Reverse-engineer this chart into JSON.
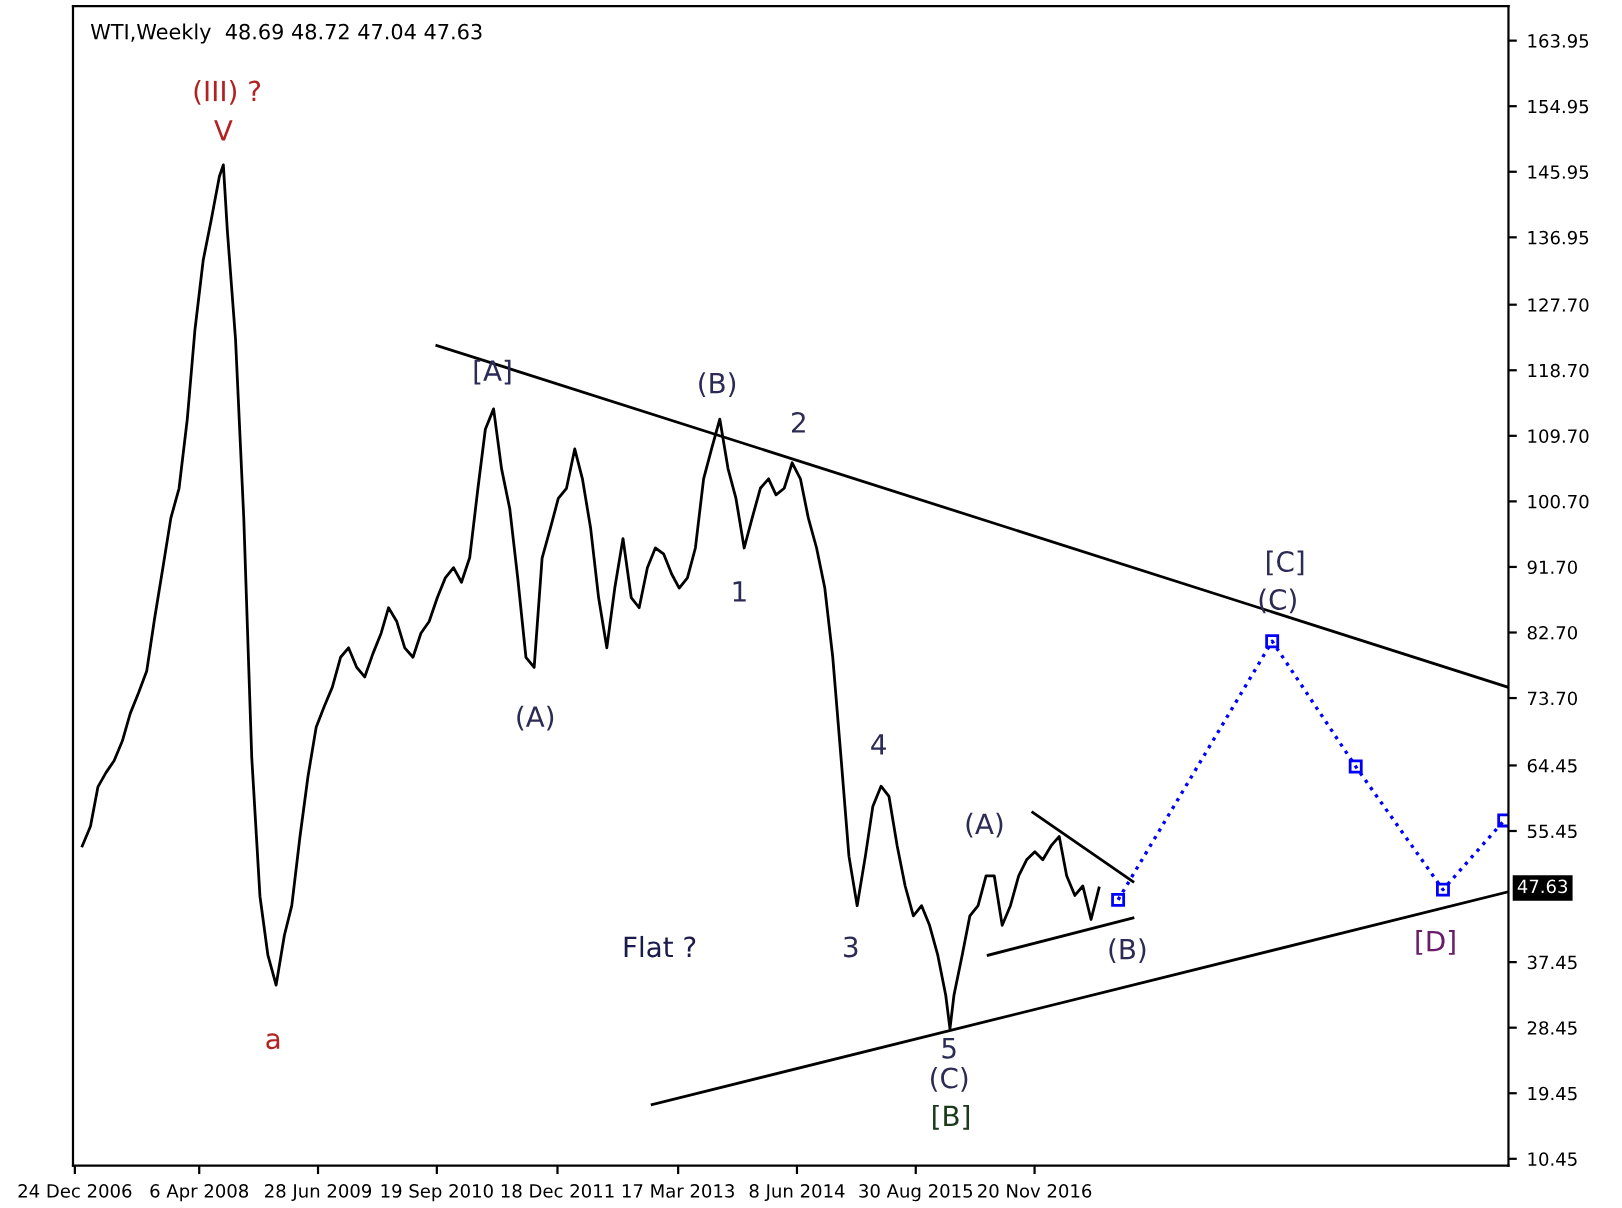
{
  "chart_data": {
    "type": "line",
    "title": "WTI,Weekly  48.69 48.72 47.04 47.63",
    "xlim": [
      "2006-12-17",
      "2021-10-12"
    ],
    "ylim": [
      9.5,
      168.7
    ],
    "xticks": [
      {
        "value": "2006-12-24",
        "label": "24 Dec 2006"
      },
      {
        "value": "2008-04-06",
        "label": "6 Apr 2008"
      },
      {
        "value": "2009-06-28",
        "label": "28 Jun 2009"
      },
      {
        "value": "2010-09-19",
        "label": "19 Sep 2010"
      },
      {
        "value": "2011-12-18",
        "label": "18 Dec 2011"
      },
      {
        "value": "2013-03-17",
        "label": "17 Mar 2013"
      },
      {
        "value": "2014-06-08",
        "label": "8 Jun 2014"
      },
      {
        "value": "2015-08-30",
        "label": "30 Aug 2015"
      },
      {
        "value": "2016-11-20",
        "label": "20 Nov 2016"
      }
    ],
    "yticks": [
      {
        "value": 10.45,
        "label": "10.45"
      },
      {
        "value": 19.45,
        "label": "19.45"
      },
      {
        "value": 28.45,
        "label": "28.45"
      },
      {
        "value": 37.45,
        "label": "37.45"
      },
      {
        "value": 55.45,
        "label": "55.45"
      },
      {
        "value": 64.45,
        "label": "64.45"
      },
      {
        "value": 73.7,
        "label": "73.70"
      },
      {
        "value": 82.7,
        "label": "82.70"
      },
      {
        "value": 91.7,
        "label": "91.70"
      },
      {
        "value": 100.7,
        "label": "100.70"
      },
      {
        "value": 109.7,
        "label": "109.70"
      },
      {
        "value": 118.7,
        "label": "118.70"
      },
      {
        "value": 127.7,
        "label": "127.70"
      },
      {
        "value": 136.95,
        "label": "136.95"
      },
      {
        "value": 145.95,
        "label": "145.95"
      },
      {
        "value": 154.95,
        "label": "154.95"
      },
      {
        "value": 163.95,
        "label": "163.95"
      }
    ],
    "grid": false,
    "legend": false,
    "series": [
      {
        "color": "#000000",
        "x": [
          "2007-01-21",
          "2007-02-21",
          "2007-03-21",
          "2007-04-21",
          "2007-05-21",
          "2007-06-21",
          "2007-07-21",
          "2007-08-21",
          "2007-09-21",
          "2007-10-21",
          "2007-11-21",
          "2007-12-21",
          "2008-01-21",
          "2008-02-21",
          "2008-03-21",
          "2008-04-21",
          "2008-05-21",
          "2008-06-21",
          "2008-07-06",
          "2008-07-21",
          "2008-08-21",
          "2008-09-21",
          "2008-10-21",
          "2008-11-21",
          "2008-12-21",
          "2009-01-21",
          "2009-02-21",
          "2009-03-21",
          "2009-04-21",
          "2009-05-21",
          "2009-06-21",
          "2009-07-21",
          "2009-08-21",
          "2009-09-21",
          "2009-10-21",
          "2009-11-21",
          "2009-12-21",
          "2010-01-21",
          "2010-02-21",
          "2010-03-21",
          "2010-04-21",
          "2010-05-21",
          "2010-06-21",
          "2010-07-21",
          "2010-08-21",
          "2010-09-21",
          "2010-10-21",
          "2010-11-21",
          "2010-12-21",
          "2011-01-21",
          "2011-02-21",
          "2011-03-21",
          "2011-04-21",
          "2011-05-21",
          "2011-06-21",
          "2011-07-21",
          "2011-08-21",
          "2011-09-21",
          "2011-10-21",
          "2011-11-21",
          "2011-12-21",
          "2012-01-21",
          "2012-02-21",
          "2012-03-21",
          "2012-04-21",
          "2012-05-21",
          "2012-06-21",
          "2012-07-21",
          "2012-08-21",
          "2012-09-21",
          "2012-10-21",
          "2012-11-21",
          "2012-12-21",
          "2013-01-21",
          "2013-02-21",
          "2013-03-21",
          "2013-04-21",
          "2013-05-21",
          "2013-06-21",
          "2013-07-21",
          "2013-08-21",
          "2013-09-21",
          "2013-10-21",
          "2013-11-21",
          "2013-12-21",
          "2014-01-21",
          "2014-02-21",
          "2014-03-21",
          "2014-04-21",
          "2014-05-21",
          "2014-06-21",
          "2014-07-21",
          "2014-08-21",
          "2014-09-21",
          "2014-10-21",
          "2014-11-21",
          "2014-12-21",
          "2015-01-21",
          "2015-02-21",
          "2015-03-21",
          "2015-04-21",
          "2015-05-21",
          "2015-06-21",
          "2015-07-21",
          "2015-08-21",
          "2015-09-21",
          "2015-10-21",
          "2015-11-21",
          "2015-12-21",
          "2016-01-06",
          "2016-01-21",
          "2016-02-21",
          "2016-03-21",
          "2016-04-21",
          "2016-05-21",
          "2016-06-21",
          "2016-07-21",
          "2016-08-21",
          "2016-09-21",
          "2016-10-21",
          "2016-11-21",
          "2016-12-21",
          "2017-01-21",
          "2017-02-21",
          "2017-03-21",
          "2017-04-21",
          "2017-05-21",
          "2017-06-21",
          "2017-07-21"
        ],
        "values": [
          53.4,
          56.1,
          61.5,
          63.5,
          65.1,
          67.8,
          71.6,
          74.4,
          77.4,
          84.7,
          91.6,
          98.4,
          102.5,
          112.0,
          124.3,
          133.8,
          139.3,
          145.3,
          146.9,
          137.9,
          122.9,
          98.4,
          65.6,
          46.5,
          38.4,
          34.3,
          41.1,
          45.2,
          54.7,
          62.9,
          69.7,
          72.5,
          75.2,
          79.3,
          80.6,
          77.9,
          76.6,
          79.8,
          82.6,
          86.1,
          84.2,
          80.6,
          79.3,
          82.6,
          84.2,
          87.5,
          90.2,
          91.6,
          89.6,
          93.0,
          102.5,
          110.6,
          113.4,
          105.2,
          99.7,
          90.2,
          79.3,
          77.9,
          92.9,
          97.0,
          101.1,
          102.5,
          107.9,
          103.8,
          97.0,
          87.5,
          80.6,
          88.8,
          95.6,
          87.5,
          86.1,
          91.6,
          94.3,
          93.5,
          90.7,
          88.8,
          90.2,
          94.3,
          103.8,
          107.9,
          112.0,
          105.2,
          101.1,
          94.3,
          98.4,
          102.5,
          103.8,
          101.6,
          102.5,
          106.0,
          103.8,
          98.4,
          94.3,
          88.8,
          79.3,
          65.6,
          52.0,
          45.2,
          52.0,
          58.8,
          61.6,
          60.2,
          53.4,
          47.9,
          43.8,
          45.2,
          42.5,
          38.4,
          32.9,
          28.3,
          32.9,
          38.4,
          43.8,
          45.2,
          49.3,
          49.3,
          42.5,
          45.2,
          49.3,
          51.5,
          52.6,
          51.5,
          53.4,
          54.7,
          49.3,
          46.6,
          47.9,
          43.3,
          47.63
        ]
      },
      {
        "color": "#000000",
        "x": [
          "2010-09-19",
          "2021-10-10"
        ],
        "values": [
          122.1,
          75.2
        ]
      },
      {
        "color": "#000000",
        "x": [
          "2012-12-09",
          "2021-10-10"
        ],
        "values": [
          17.9,
          47.1
        ]
      },
      {
        "color": "#000000",
        "x": [
          "2016-11-13",
          "2017-11-26"
        ],
        "values": [
          58.0,
          48.5
        ]
      },
      {
        "color": "#000000",
        "x": [
          "2016-05-29",
          "2017-11-26"
        ],
        "values": [
          38.4,
          43.5
        ]
      },
      {
        "color": "#0000ff",
        "line_style": "dotted",
        "marker": "square",
        "x": [
          "2017-10-01",
          "2019-05-05",
          "2020-03-15",
          "2021-02-07",
          "2021-09-26"
        ],
        "values": [
          46.0,
          81.5,
          64.3,
          47.4,
          56.9
        ]
      }
    ],
    "annotations": [
      "(III) ?",
      "V",
      "a",
      "[A]",
      "(B)",
      "2",
      "1",
      "(A)",
      "Flat ?",
      "4",
      "3",
      "(A)",
      "(B)",
      "5",
      "(C)",
      "[B]",
      "[C]",
      "(C)",
      "[D]",
      "47.63"
    ]
  }
}
